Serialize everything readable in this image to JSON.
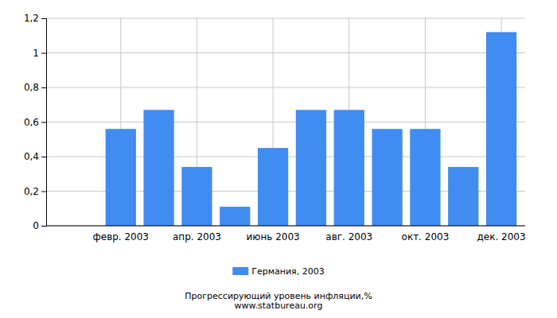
{
  "chart_data": {
    "type": "bar",
    "title": "Прогрессирующий уровень инфляции,%",
    "subtitle": "www.statbureau.org",
    "categories": [
      null,
      "февр. 2003",
      null,
      "апр. 2003",
      null,
      "июнь 2003",
      null,
      "авг. 2003",
      null,
      "окт. 2003",
      null,
      "дек. 2003"
    ],
    "series": [
      {
        "name": "Германия, 2003",
        "color": "#418cf0",
        "values": [
          null,
          0.56,
          0.67,
          0.34,
          0.11,
          0.45,
          0.67,
          0.67,
          0.56,
          0.56,
          0.34,
          1.12
        ]
      }
    ],
    "ylim": [
      0,
      1.2
    ],
    "yticks": [
      0,
      {
        "value": 0.2,
        "label": "0,2"
      },
      {
        "value": 0.4,
        "label": "0,4"
      },
      {
        "value": 0.6,
        "label": "0,6"
      },
      {
        "value": 0.8,
        "label": "0,8"
      },
      1,
      {
        "value": 1.2,
        "label": "1,2"
      }
    ],
    "grid": true,
    "legend": "bottom"
  }
}
